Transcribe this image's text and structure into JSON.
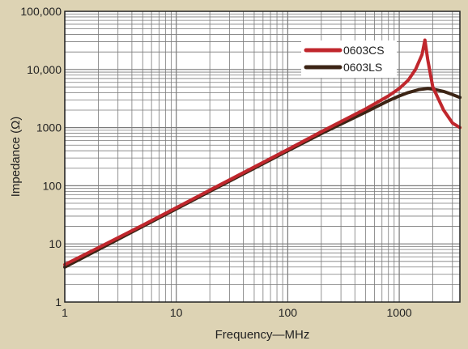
{
  "chart_data": {
    "type": "line",
    "xlabel": "Frequency—MHz",
    "ylabel": "Impedance (Ω)",
    "x_scale": "log",
    "y_scale": "log",
    "xlim": [
      1,
      3500
    ],
    "ylim": [
      1,
      100000
    ],
    "x_ticks": [
      1,
      10,
      100,
      1000
    ],
    "x_tick_labels": [
      "1",
      "10",
      "100",
      "1000"
    ],
    "y_ticks": [
      1,
      10,
      100,
      1000,
      10000,
      100000
    ],
    "y_tick_labels": [
      "1",
      "10",
      "100",
      "1000",
      "10,000",
      "100,000"
    ],
    "grid": true,
    "legend_position": "top-right",
    "series": [
      {
        "name": "0603CS",
        "color": "#c0272d",
        "x": [
          1,
          2,
          5,
          10,
          20,
          50,
          100,
          200,
          500,
          800,
          1000,
          1200,
          1400,
          1600,
          1700,
          1800,
          2000,
          2500,
          3000,
          3500
        ],
        "y": [
          4.4,
          8.6,
          21,
          42,
          84,
          210,
          420,
          850,
          2100,
          3500,
          4700,
          6500,
          10000,
          18000,
          32000,
          15000,
          5000,
          2000,
          1200,
          1000
        ]
      },
      {
        "name": "0603LS",
        "color": "#3c2415",
        "x": [
          1,
          2,
          5,
          10,
          20,
          50,
          100,
          200,
          500,
          800,
          1000,
          1200,
          1500,
          1800,
          2000,
          2500,
          3000,
          3500
        ],
        "y": [
          4,
          8,
          20,
          40,
          80,
          200,
          400,
          790,
          1850,
          2900,
          3500,
          4000,
          4500,
          4700,
          4600,
          4200,
          3700,
          3300
        ]
      }
    ]
  }
}
